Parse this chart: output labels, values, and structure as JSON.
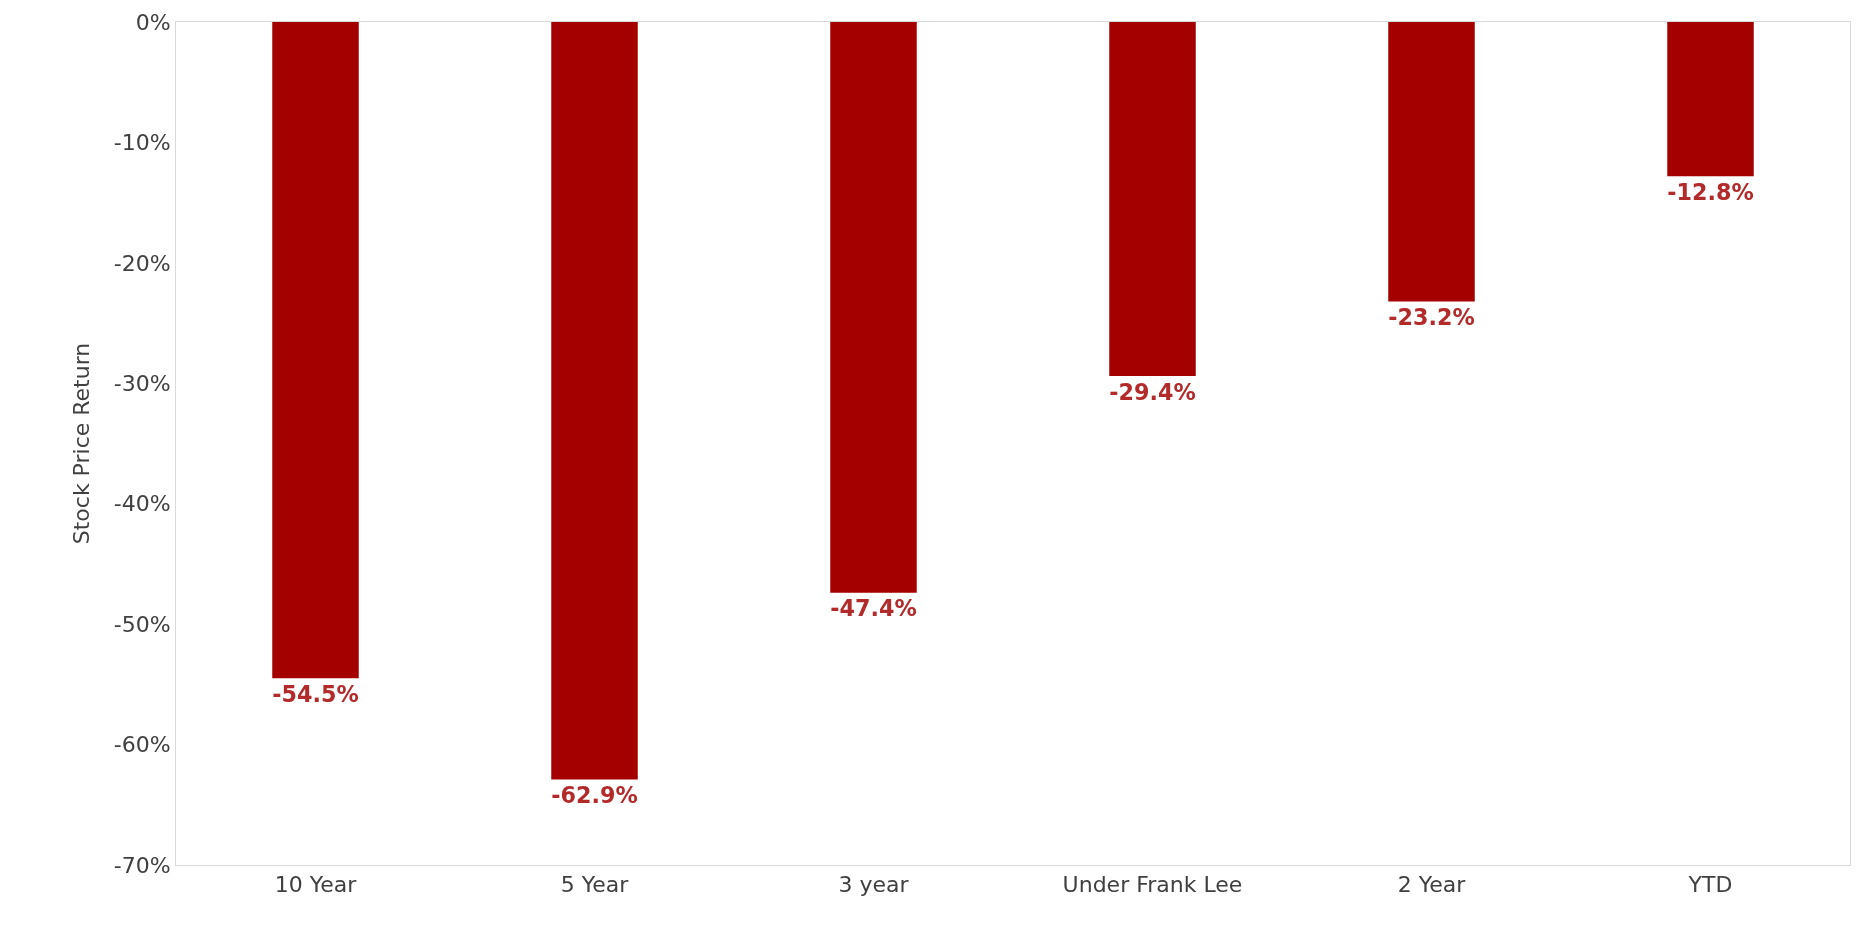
{
  "chart_data": {
    "type": "bar",
    "ylabel": "Stock Price Return",
    "categories": [
      "10 Year",
      "5 Year",
      "3 year",
      "Under Frank Lee",
      "2 Year",
      "YTD"
    ],
    "values": [
      -54.5,
      -62.9,
      -47.4,
      -29.4,
      -23.2,
      -12.8
    ],
    "value_labels": [
      "-54.5%",
      "-62.9%",
      "-47.4%",
      "-29.4%",
      "-23.2%",
      "-12.8%"
    ],
    "color": "#a50000",
    "ylim": [
      -70,
      0
    ],
    "yticks": [
      {
        "value": 0,
        "label": "0%"
      },
      {
        "value": -10,
        "label": "-10%"
      },
      {
        "value": -20,
        "label": "-20%"
      },
      {
        "value": -30,
        "label": "-30%"
      },
      {
        "value": -40,
        "label": "-40%"
      },
      {
        "value": -50,
        "label": "-50%"
      },
      {
        "value": -60,
        "label": "-60%"
      },
      {
        "value": -70,
        "label": "-70%"
      }
    ],
    "grid": false,
    "legend": false
  }
}
